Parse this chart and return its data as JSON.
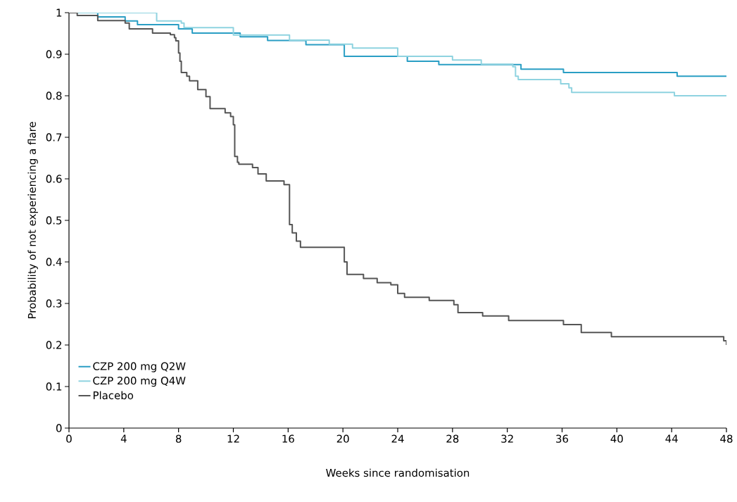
{
  "chart_data": {
    "type": "step",
    "xlabel": "Weeks since randomisation",
    "ylabel": "Probability of not experiencing a flare",
    "xlim": [
      0,
      48
    ],
    "ylim": [
      0,
      1
    ],
    "xticks": [
      0,
      4,
      8,
      12,
      16,
      20,
      24,
      28,
      32,
      36,
      40,
      44,
      48
    ],
    "yticks": [
      0,
      0.1,
      0.2,
      0.3,
      0.4,
      0.5,
      0.6,
      0.7,
      0.8,
      0.9,
      1
    ],
    "grid": false,
    "legend": "bottom left",
    "marker": "none",
    "line_style": "solid",
    "series": [
      {
        "name": "CZP 200 mg Q2W",
        "color": "#2a9ec4",
        "x": [
          0,
          2.1,
          4.1,
          5.0,
          8.0,
          9.0,
          12.5,
          14.5,
          17.3,
          20.1,
          24.7,
          27.0,
          33.0,
          36.1,
          44.4,
          48
        ],
        "values": [
          1,
          0.99,
          0.98,
          0.971,
          0.961,
          0.951,
          0.942,
          0.933,
          0.923,
          0.895,
          0.883,
          0.875,
          0.864,
          0.856,
          0.847,
          0.847
        ]
      },
      {
        "name": "CZP 200 mg Q4W",
        "color": "#8fd3e0",
        "x": [
          0,
          6.4,
          8.2,
          8.4,
          12.0,
          16.1,
          19.0,
          20.7,
          24.0,
          28.0,
          30.1,
          32.4,
          32.6,
          32.8,
          35.9,
          36.5,
          36.7,
          44.2,
          48
        ],
        "values": [
          1,
          0.98,
          0.975,
          0.964,
          0.946,
          0.934,
          0.924,
          0.915,
          0.895,
          0.886,
          0.876,
          0.87,
          0.847,
          0.839,
          0.829,
          0.819,
          0.808,
          0.8,
          0.8
        ]
      },
      {
        "name": "Placebo",
        "color": "#555555",
        "x": [
          0,
          0.6,
          2.1,
          4.1,
          4.4,
          6.1,
          7.4,
          7.7,
          7.8,
          8.0,
          8.1,
          8.2,
          8.6,
          8.8,
          9.4,
          10.0,
          10.3,
          11.4,
          11.8,
          12.0,
          12.1,
          12.3,
          12.4,
          13.4,
          13.8,
          14.4,
          15.7,
          16.1,
          16.3,
          16.6,
          16.9,
          20.1,
          20.3,
          21.5,
          22.5,
          23.5,
          24.0,
          24.5,
          26.3,
          28.1,
          28.4,
          30.2,
          32.1,
          36.1,
          37.4,
          39.6,
          47.8,
          48
        ],
        "values": [
          1,
          0.993,
          0.981,
          0.975,
          0.961,
          0.951,
          0.947,
          0.94,
          0.932,
          0.903,
          0.883,
          0.856,
          0.847,
          0.836,
          0.815,
          0.798,
          0.769,
          0.759,
          0.75,
          0.73,
          0.654,
          0.64,
          0.635,
          0.627,
          0.612,
          0.595,
          0.586,
          0.49,
          0.47,
          0.45,
          0.435,
          0.4,
          0.37,
          0.36,
          0.35,
          0.345,
          0.324,
          0.315,
          0.307,
          0.297,
          0.278,
          0.27,
          0.259,
          0.249,
          0.23,
          0.22,
          0.21,
          0.2
        ]
      }
    ]
  }
}
